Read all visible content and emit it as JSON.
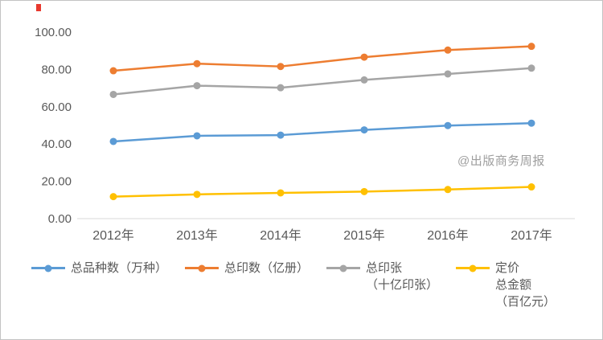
{
  "watermark": "@出版商务周报",
  "chart_data": {
    "type": "line",
    "title": "",
    "xlabel": "",
    "ylabel": "",
    "categories": [
      "2012年",
      "2013年",
      "2014年",
      "2015年",
      "2016年",
      "2017年"
    ],
    "y_ticks": [
      "0.00",
      "20.00",
      "40.00",
      "60.00",
      "80.00",
      "100.00"
    ],
    "ylim": [
      0,
      100
    ],
    "grid": false,
    "legend_position": "bottom",
    "series": [
      {
        "name": "总品种数（万种）",
        "color": "#5B9BD5",
        "values": [
          41.4,
          44.4,
          44.8,
          47.6,
          49.9,
          51.2
        ]
      },
      {
        "name": "总印数（亿册）",
        "color": "#ED7D31",
        "values": [
          79.3,
          83.1,
          81.6,
          86.6,
          90.4,
          92.4
        ]
      },
      {
        "name": "总印张（十亿印张）",
        "color": "#A5A5A5",
        "values": [
          66.6,
          71.3,
          70.2,
          74.4,
          77.6,
          80.7
        ]
      },
      {
        "name": "定价总金额（百亿元）",
        "color": "#FFC000",
        "values": [
          11.8,
          13.0,
          13.8,
          14.5,
          15.6,
          17.0
        ]
      }
    ],
    "legend_labels": [
      "总品种数（万种）",
      "总印数（亿册）",
      "总印张\n（十亿印张）",
      "定价\n总金额\n（百亿元）"
    ]
  }
}
